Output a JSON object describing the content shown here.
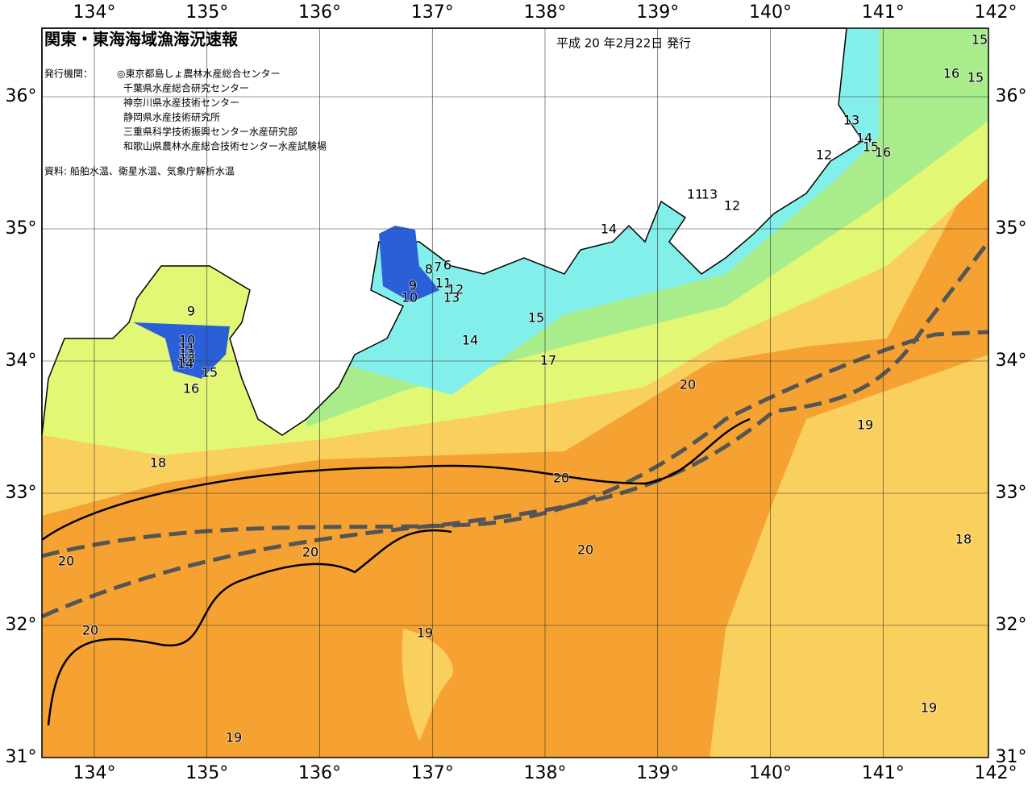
{
  "header": {
    "title": "関東・東海海域漁海況速報",
    "date": "平成 20 年2月22日 発行",
    "issuers_label": "発行機関：",
    "issuers": [
      "◎東京都島しょ農林水産総合センター",
      "千葉県水産総合研究センター",
      "神奈川県水産技術センター",
      "静岡県水産技術研究所",
      "三重県科学技術振興センター水産研究部",
      "和歌山県農林水産総合技術センター水産試験場"
    ],
    "source": "資料: 船舶水温、衛星水温、気象庁解析水温"
  },
  "map": {
    "lon_ticks": [
      {
        "value": 134,
        "label": "134°"
      },
      {
        "value": 135,
        "label": "135°"
      },
      {
        "value": 136,
        "label": "136°"
      },
      {
        "value": 137,
        "label": "137°"
      },
      {
        "value": 138,
        "label": "138°"
      },
      {
        "value": 139,
        "label": "139°"
      },
      {
        "value": 140,
        "label": "140°"
      },
      {
        "value": 141,
        "label": "141°"
      },
      {
        "value": 142,
        "label": "142°"
      }
    ],
    "lat_ticks": [
      {
        "value": 31,
        "label": "31°"
      },
      {
        "value": 32,
        "label": "32°"
      },
      {
        "value": 33,
        "label": "33°"
      },
      {
        "value": 34,
        "label": "34°"
      },
      {
        "value": 35,
        "label": "35°"
      },
      {
        "value": 36,
        "label": "36°"
      }
    ],
    "contour_labels": [
      "15",
      "16",
      "15",
      "13",
      "14",
      "15",
      "16",
      "12",
      "11",
      "13",
      "12",
      "14",
      "8",
      "7",
      "6",
      "9",
      "10",
      "11",
      "12",
      "13",
      "9",
      "10",
      "11",
      "12",
      "13",
      "14",
      "15",
      "16",
      "15",
      "14",
      "17",
      "20",
      "19",
      "18",
      "20",
      "20",
      "20",
      "20",
      "20",
      "19",
      "18",
      "19",
      "19"
    ]
  }
}
